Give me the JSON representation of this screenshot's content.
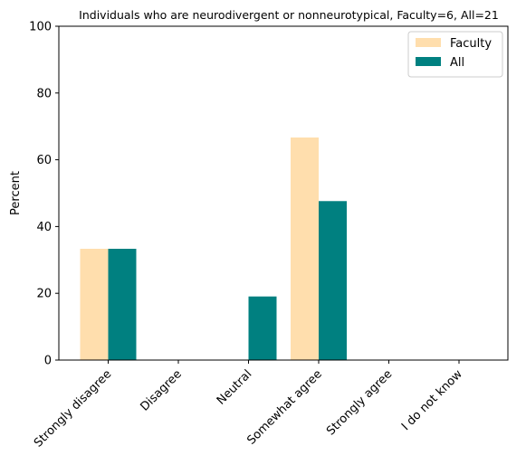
{
  "chart_data": {
    "type": "bar",
    "title": "Individuals who are neurodivergent or nonneurotypical, Faculty=6, All=21",
    "ylabel": "Percent",
    "xlabel": "",
    "ylim": [
      0,
      100
    ],
    "yticks": [
      0,
      20,
      40,
      60,
      80,
      100
    ],
    "categories": [
      "Strongly disagree",
      "Disagree",
      "Neutral",
      "Somewhat agree",
      "Strongly agree",
      "I do not know"
    ],
    "series": [
      {
        "name": "Faculty",
        "color": "#ffdead",
        "values": [
          33.33,
          0,
          0,
          66.67,
          0,
          0
        ]
      },
      {
        "name": "All",
        "color": "#008080",
        "values": [
          33.33,
          0,
          19.05,
          47.62,
          0,
          0
        ]
      }
    ],
    "legend_position": "top-right",
    "grid": false
  }
}
